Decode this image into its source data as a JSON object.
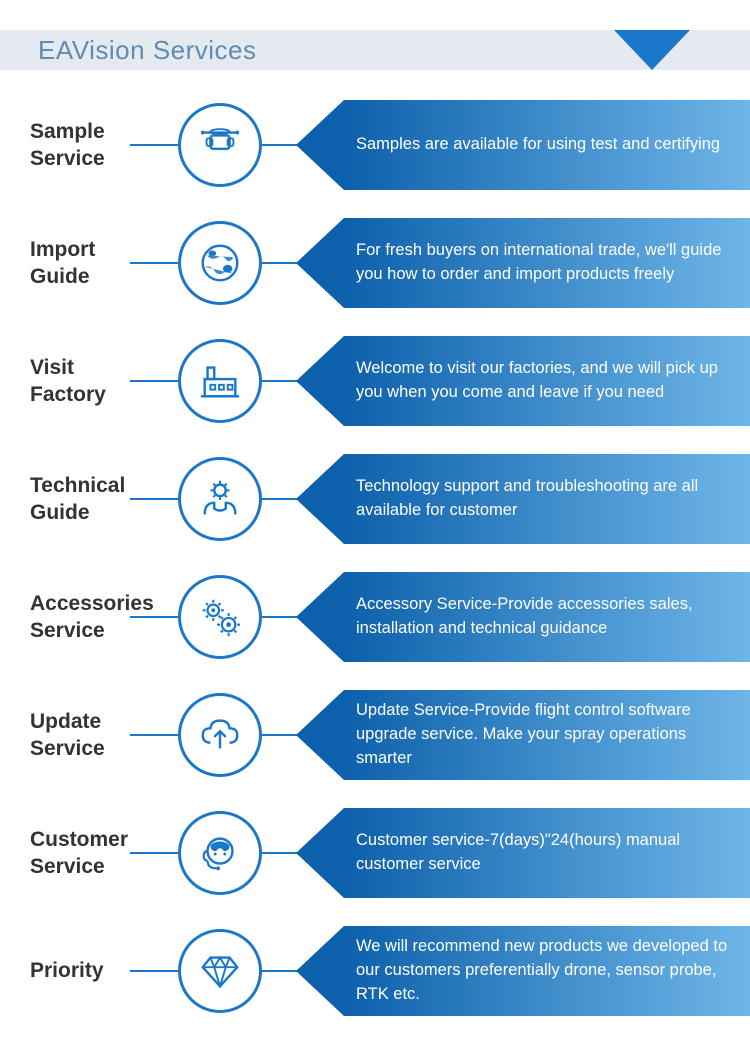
{
  "colors": {
    "primary": "#1a77c9",
    "gradient_start": "#0d60ab",
    "gradient_end": "#6eb6e8",
    "header_bg": "#e4eaf0",
    "header_text": "#608bb2",
    "label_text": "#333333",
    "desc_text": "#ffffff"
  },
  "header": {
    "title": "EAVision Services"
  },
  "services": [
    {
      "label": "Sample Service",
      "icon": "drone",
      "description": "Samples are available for using test and certifying"
    },
    {
      "label": "Import Guide",
      "icon": "globe",
      "description": "For fresh buyers on international trade, we'll guide you how to order and import products freely"
    },
    {
      "label": "Visit Factory",
      "icon": "factory",
      "description": "Welcome to visit our factories, and we will pick up you when you come and leave if you need"
    },
    {
      "label": "Technical Guide",
      "icon": "tech-support",
      "description": "Technology support and troubleshooting are all available for customer"
    },
    {
      "label": "Accessories Service",
      "icon": "gears",
      "description": "Accessory Service-Provide accessories sales, installation and technical guidance"
    },
    {
      "label": "Update Service",
      "icon": "cloud-upload",
      "description": "Update Service-Provide flight control software upgrade service. Make your spray operations smarter"
    },
    {
      "label": "Customer Service",
      "icon": "headset",
      "description": "Customer service-7(days)\"24(hours) manual customer service"
    },
    {
      "label": "Priority",
      "icon": "diamond",
      "description": "We will recommend new products we developed to our customers preferentially drone, sensor probe, RTK etc."
    }
  ]
}
